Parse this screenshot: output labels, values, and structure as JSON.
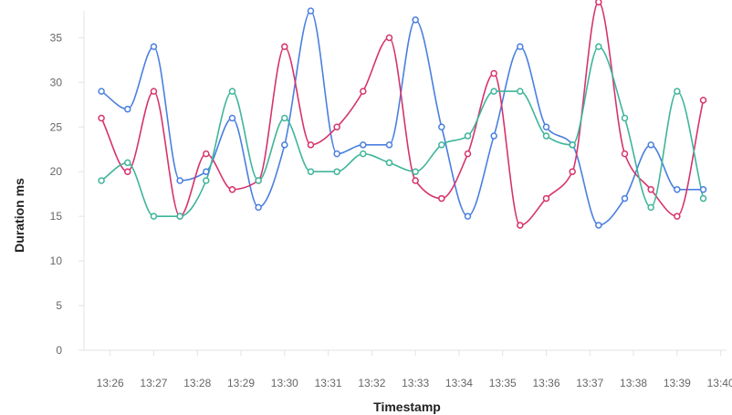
{
  "chart_data": {
    "type": "line",
    "xlabel": "Timestamp",
    "ylabel": "Duration ms",
    "x_ticks": [
      "13:26",
      "13:27",
      "13:28",
      "13:29",
      "13:30",
      "13:31",
      "13:32",
      "13:33",
      "13:34",
      "13:35",
      "13:36",
      "13:37",
      "13:38",
      "13:39",
      "13:40"
    ],
    "y_ticks": [
      0,
      5,
      10,
      15,
      20,
      25,
      30,
      35
    ],
    "ylim": [
      0,
      38
    ],
    "grid": false,
    "legend": "none",
    "x": [
      "13:25:48",
      "13:26:24",
      "13:27:00",
      "13:27:36",
      "13:28:12",
      "13:28:48",
      "13:29:24",
      "13:30:00",
      "13:30:36",
      "13:31:12",
      "13:31:48",
      "13:32:24",
      "13:33:00",
      "13:33:36",
      "13:34:12",
      "13:34:48",
      "13:35:24",
      "13:36:00",
      "13:36:36",
      "13:37:12",
      "13:37:48",
      "13:38:24",
      "13:39:00",
      "13:39:36"
    ],
    "xlim": [
      "13:25:24",
      "13:40:08"
    ],
    "series": [
      {
        "color": "#4a7fe0",
        "values": [
          29,
          27,
          34,
          19,
          20,
          26,
          16,
          23,
          38,
          22,
          23,
          23,
          37,
          25,
          15,
          24,
          34,
          25,
          23,
          14,
          17,
          23,
          18,
          18
        ]
      },
      {
        "color": "#d6336c",
        "values": [
          26,
          20,
          29,
          15,
          22,
          18,
          19,
          34,
          23,
          25,
          29,
          35,
          19,
          17,
          22,
          31,
          14,
          17,
          20,
          39,
          22,
          18,
          15,
          28
        ]
      },
      {
        "color": "#3fb59a",
        "values": [
          19,
          21,
          15,
          15,
          19,
          29,
          19,
          26,
          20,
          20,
          22,
          21,
          20,
          23,
          24,
          29,
          29,
          24,
          23,
          34,
          26,
          16,
          29,
          17
        ]
      }
    ]
  }
}
